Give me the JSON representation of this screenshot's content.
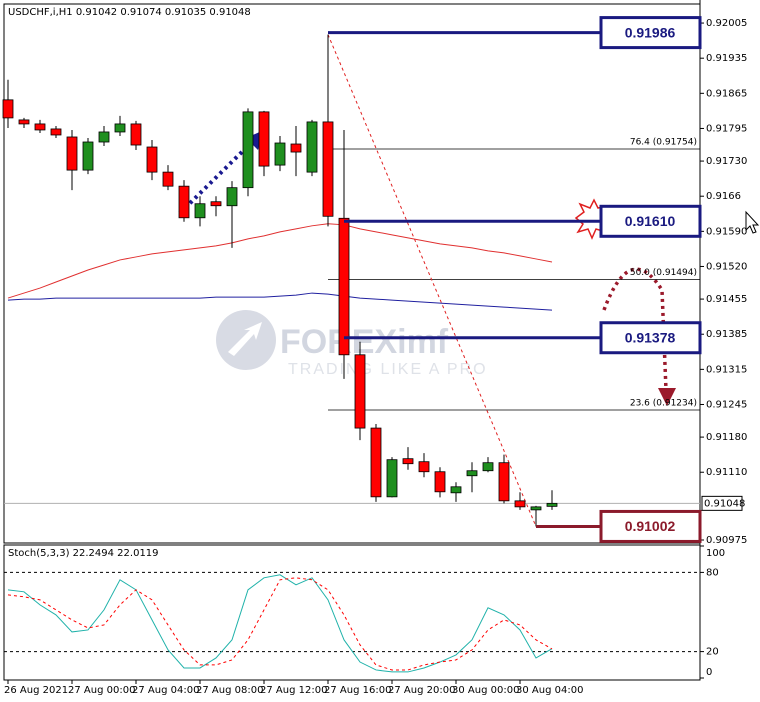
{
  "chart_data": [
    {
      "type": "candlestick",
      "title": "USDCHF,i,H1  0.91042 0.91074 0.91035 0.91048",
      "categories": [
        "26 Aug 2021",
        null,
        null,
        null,
        "27 Aug 00:00",
        null,
        null,
        null,
        "27 Aug 04:00",
        null,
        null,
        null,
        "27 Aug 08:00",
        null,
        null,
        null,
        "27 Aug 12:00",
        null,
        null,
        null,
        "27 Aug 16:00",
        null,
        null,
        null,
        "27 Aug 20:00",
        null,
        null,
        null,
        "30 Aug 00:00",
        null,
        null,
        null,
        "30 Aug 04:00",
        null,
        null
      ],
      "open": [
        0.91852,
        0.91812,
        0.91804,
        0.91794,
        0.91778,
        0.91712,
        0.91768,
        0.91788,
        0.91804,
        0.91758,
        0.91708,
        0.9168,
        0.91617,
        0.91649,
        0.91641,
        0.91677,
        0.91828,
        0.91722,
        0.91764,
        0.91708,
        0.91808,
        0.91616,
        0.91344,
        0.91198,
        0.91061,
        0.91137,
        0.91131,
        0.91111,
        0.91069,
        0.91103,
        0.91113,
        0.91129,
        0.91053,
        0.91035,
        0.91042
      ],
      "high": [
        0.91892,
        0.91816,
        0.91812,
        0.918,
        0.91792,
        0.91776,
        0.918,
        0.9182,
        0.9181,
        0.91772,
        0.91722,
        0.91692,
        0.9166,
        0.9166,
        0.9169,
        0.91835,
        0.9183,
        0.9178,
        0.918,
        0.91812,
        0.91982,
        0.91792,
        0.9137,
        0.91206,
        0.9114,
        0.9116,
        0.91148,
        0.9112,
        0.9109,
        0.9113,
        0.9114,
        0.91145,
        0.9107,
        0.91043,
        0.91074
      ],
      "low": [
        0.91796,
        0.91796,
        0.91786,
        0.91776,
        0.91672,
        0.91704,
        0.9176,
        0.9178,
        0.91752,
        0.91692,
        0.91672,
        0.91609,
        0.916,
        0.9162,
        0.91557,
        0.9166,
        0.917,
        0.9171,
        0.917,
        0.917,
        0.916,
        0.91296,
        0.91174,
        0.91051,
        0.9106,
        0.91115,
        0.911,
        0.9106,
        0.91051,
        0.9107,
        0.9111,
        0.91048,
        0.91035,
        0.91002,
        0.91035
      ],
      "close": [
        0.91816,
        0.91804,
        0.91792,
        0.91782,
        0.91712,
        0.91768,
        0.91788,
        0.91804,
        0.91762,
        0.91708,
        0.9168,
        0.91617,
        0.91645,
        0.91641,
        0.91677,
        0.91828,
        0.9172,
        0.91766,
        0.91748,
        0.91808,
        0.9162,
        0.91344,
        0.91198,
        0.91061,
        0.91135,
        0.91127,
        0.91111,
        0.91071,
        0.91081,
        0.91113,
        0.91129,
        0.91053,
        0.91041,
        0.91041,
        0.91048
      ],
      "up_color": "#1f8f1f",
      "down_color": "#ff0000",
      "overlays": [
        {
          "color": "#e03030",
          "values": [
            0.91457,
            0.91467,
            0.91477,
            0.91489,
            0.91501,
            0.91513,
            0.91523,
            0.91533,
            0.91539,
            0.91545,
            0.91549,
            0.91553,
            0.91557,
            0.91561,
            0.91567,
            0.91575,
            0.91581,
            0.91589,
            0.91595,
            0.91601,
            0.91605,
            0.91603,
            0.91595,
            0.91589,
            0.91583,
            0.91577,
            0.91571,
            0.91565,
            0.91561,
            0.91557,
            0.91551,
            0.91547,
            0.91541,
            0.91535,
            0.91529
          ]
        },
        {
          "color": "#2020a0",
          "values": [
            0.91453,
            0.91455,
            0.91455,
            0.91457,
            0.91457,
            0.91457,
            0.91457,
            0.91457,
            0.91457,
            0.91457,
            0.91457,
            0.91457,
            0.91457,
            0.91459,
            0.91459,
            0.91459,
            0.91459,
            0.91461,
            0.91463,
            0.91467,
            0.91465,
            0.91461,
            0.91457,
            0.91455,
            0.91453,
            0.91451,
            0.91449,
            0.91447,
            0.91445,
            0.91443,
            0.91441,
            0.91439,
            0.91437,
            0.91435,
            0.91433
          ]
        }
      ],
      "levels": [
        {
          "value": 0.91986,
          "label": "0.91986",
          "color": "#1a1a80"
        },
        {
          "value": 0.9161,
          "label": "0.91610",
          "color": "#1a1a80"
        },
        {
          "value": 0.91378,
          "label": "0.91378",
          "color": "#1a1a80"
        },
        {
          "value": 0.91002,
          "label": "0.91002",
          "color": "#8b1a2b"
        }
      ],
      "fib_levels": [
        {
          "value": 0.91754,
          "label": "76.4 (0.91754)"
        },
        {
          "value": 0.91494,
          "label": "50.0 (0.91494)"
        },
        {
          "value": 0.91234,
          "label": "23.6 (0.91234)"
        }
      ],
      "ylim": [
        0.90969,
        0.92035
      ],
      "yticks": [
        0.92005,
        0.91935,
        0.91865,
        0.91795,
        {
          "value": 0.9173,
          "label": "0.91730"
        },
        0.9166,
        {
          "value": 0.9159,
          "label": "0.91590"
        },
        {
          "value": 0.9152,
          "label": "0.91520"
        },
        0.91455,
        0.91385,
        0.91315,
        0.91245,
        {
          "value": 0.9118,
          "label": "0.91180"
        },
        {
          "value": 0.9111,
          "label": "0.91110"
        },
        0.90975
      ],
      "watermark": {
        "title": "FOREXimf",
        "subtitle": "TRADING LIKE A PRO"
      }
    },
    {
      "type": "line",
      "title": "Stoch(5,3,3) 22.2494 22.0119",
      "series": [
        {
          "color": "#20b2aa",
          "style": "solid",
          "values": [
            66.8,
            65.3,
            55.4,
            47.8,
            34.9,
            36.4,
            51.6,
            74.4,
            66.8,
            44.0,
            21.3,
            7.6,
            7.6,
            15.2,
            28.9,
            66.8,
            75.9,
            78.2,
            70.6,
            75.9,
            59.2,
            28.9,
            12.1,
            6.1,
            4.6,
            4.6,
            7.6,
            12.1,
            17.5,
            28.9,
            53.2,
            47.8,
            36.4,
            15.2,
            22.2
          ]
        },
        {
          "color": "#ff0000",
          "style": "dashed",
          "values": [
            63.0,
            61.5,
            59.2,
            51.6,
            44.0,
            37.9,
            40.2,
            55.4,
            66.8,
            59.2,
            40.2,
            21.3,
            9.9,
            9.9,
            13.7,
            28.9,
            51.6,
            74.4,
            75.9,
            74.4,
            66.8,
            47.8,
            25.1,
            9.9,
            6.1,
            6.1,
            9.9,
            12.1,
            13.7,
            21.3,
            36.4,
            44.0,
            40.2,
            28.9,
            22.0
          ]
        }
      ],
      "levels": [
        80,
        20
      ],
      "ylim": [
        0,
        100
      ],
      "yticks": [
        0,
        20,
        80,
        100
      ]
    }
  ]
}
